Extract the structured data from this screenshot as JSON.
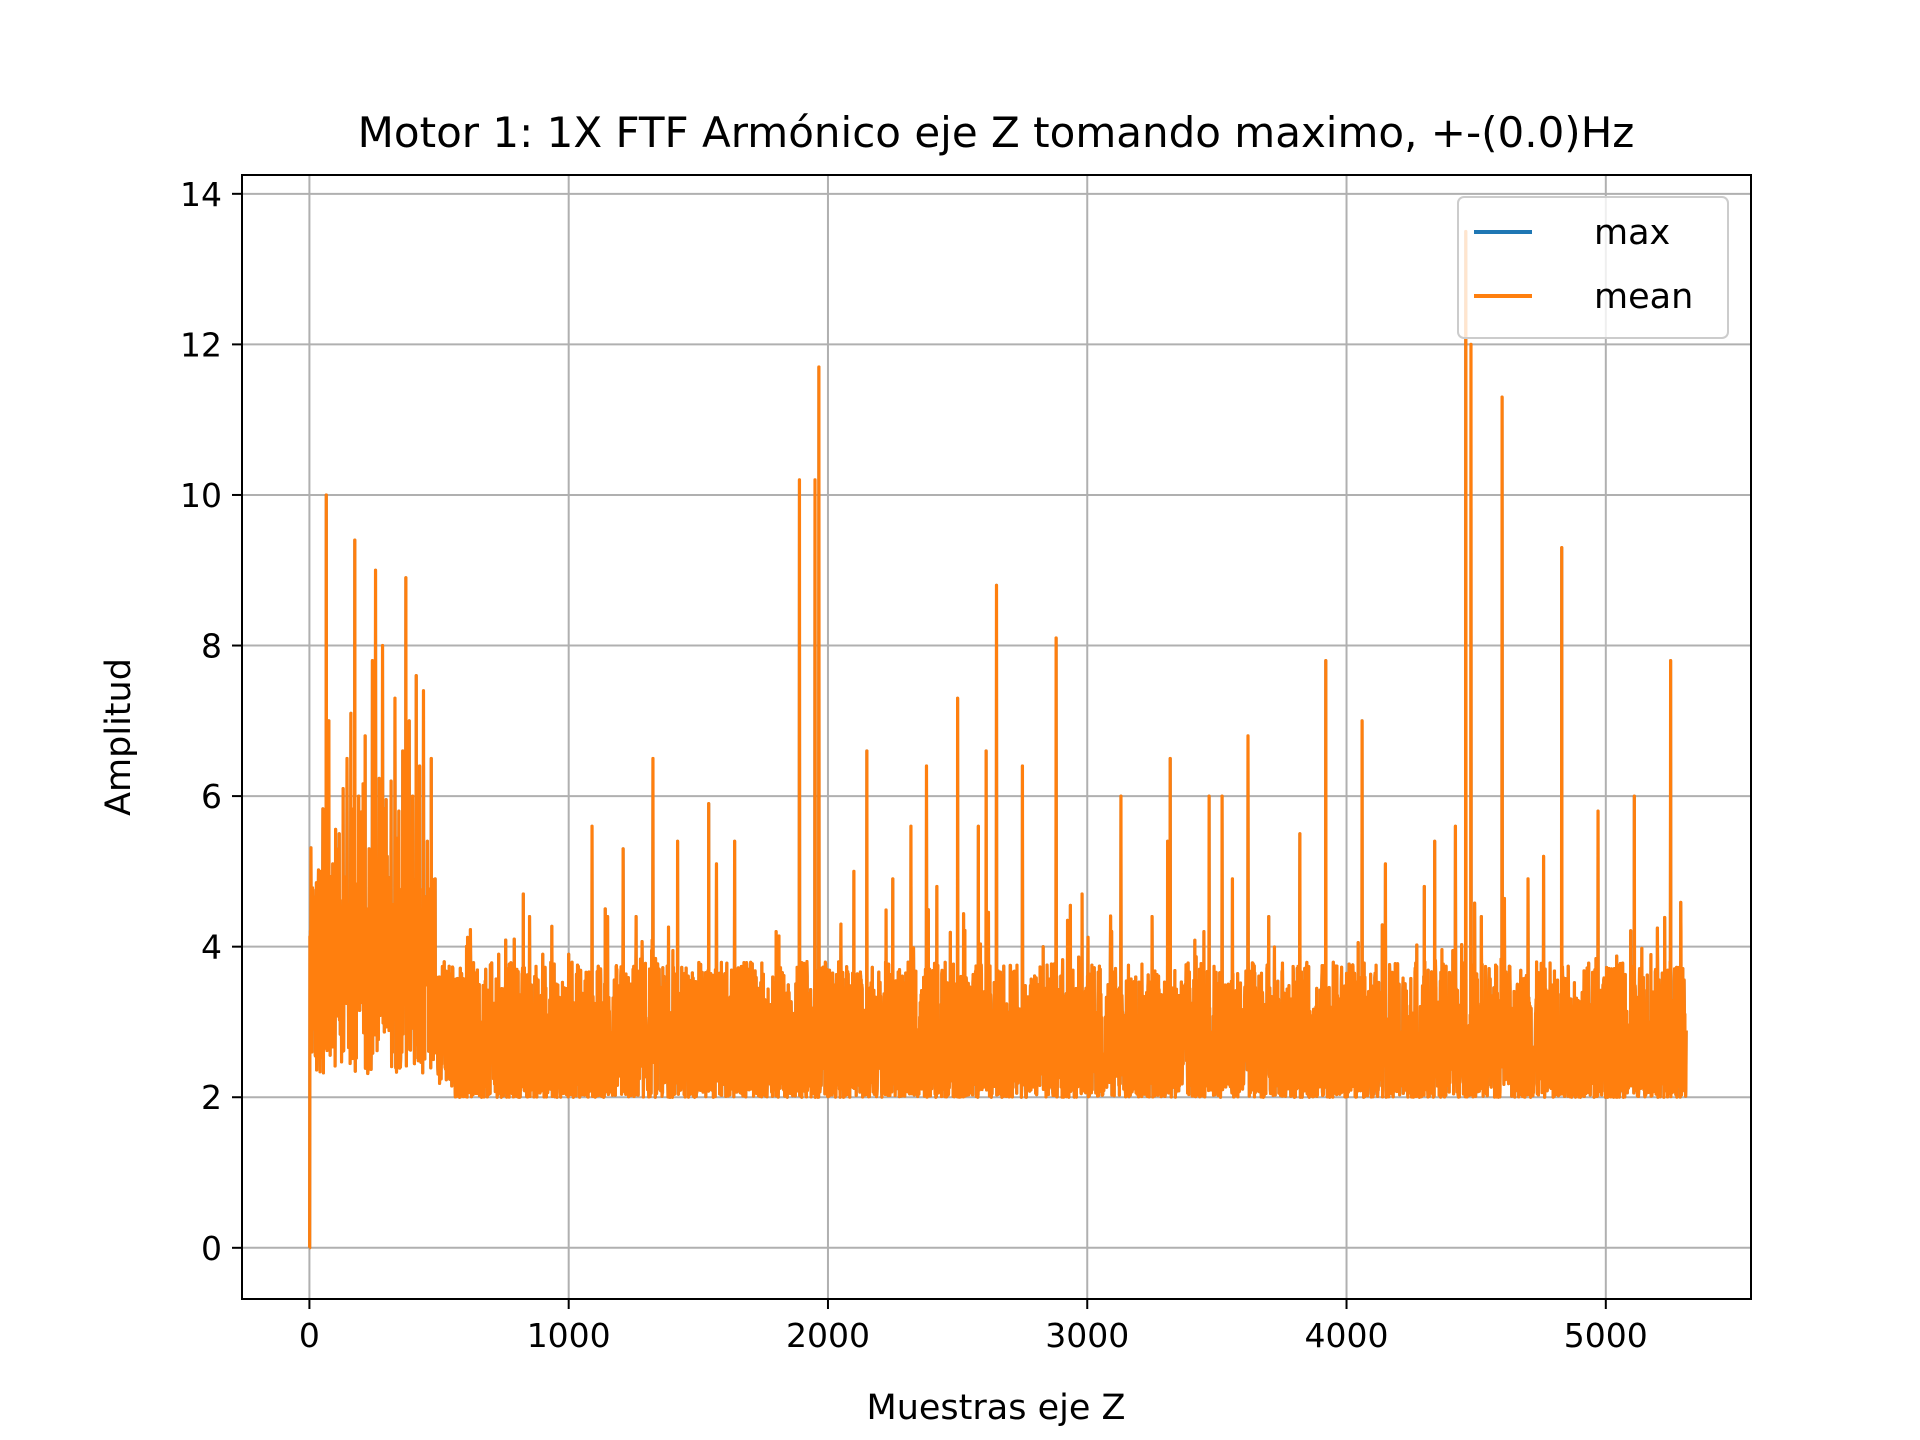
{
  "chart_data": {
    "type": "line",
    "title": "Motor 1: 1X FTF Armónico eje Z tomando maximo, +-(0.0)Hz",
    "xlabel": "Muestras eje Z",
    "ylabel": "Amplitud",
    "xlim": [
      -260,
      5560
    ],
    "ylim": [
      -0.68,
      14.25
    ],
    "xticks": [
      0,
      1000,
      2000,
      3000,
      4000,
      5000
    ],
    "yticks": [
      0,
      2,
      4,
      6,
      8,
      10,
      12,
      14
    ],
    "xtick_labels": [
      "0",
      "1000",
      "2000",
      "3000",
      "4000",
      "5000"
    ],
    "ytick_labels": [
      "0",
      "2",
      "4",
      "6",
      "8",
      "10",
      "12",
      "14"
    ],
    "grid": true,
    "legend_position": "top-right",
    "x_range": [
      0,
      5310
    ],
    "baseline_range": [
      2.0,
      3.3
    ],
    "initial_value": 0.0,
    "peaks": [
      [
        5,
        3.6
      ],
      [
        15,
        4.4
      ],
      [
        30,
        4.3
      ],
      [
        45,
        5.0
      ],
      [
        58,
        3.8
      ],
      [
        65,
        10.0
      ],
      [
        75,
        7.0
      ],
      [
        90,
        5.1
      ],
      [
        105,
        4.2
      ],
      [
        115,
        5.5
      ],
      [
        130,
        6.1
      ],
      [
        145,
        6.5
      ],
      [
        160,
        7.1
      ],
      [
        175,
        9.4
      ],
      [
        190,
        6.0
      ],
      [
        200,
        5.5
      ],
      [
        215,
        6.8
      ],
      [
        230,
        5.3
      ],
      [
        243,
        7.8
      ],
      [
        255,
        9.0
      ],
      [
        270,
        4.6
      ],
      [
        282,
        8.0
      ],
      [
        300,
        5.2
      ],
      [
        315,
        6.2
      ],
      [
        330,
        7.3
      ],
      [
        345,
        5.8
      ],
      [
        360,
        6.6
      ],
      [
        372,
        8.9
      ],
      [
        385,
        7.0
      ],
      [
        398,
        6.0
      ],
      [
        412,
        7.6
      ],
      [
        425,
        6.4
      ],
      [
        440,
        7.4
      ],
      [
        455,
        5.4
      ],
      [
        470,
        6.5
      ],
      [
        485,
        4.9
      ],
      [
        520,
        3.8
      ],
      [
        600,
        3.5
      ],
      [
        680,
        3.7
      ],
      [
        730,
        3.9
      ],
      [
        790,
        4.1
      ],
      [
        825,
        4.7
      ],
      [
        900,
        3.9
      ],
      [
        1000,
        3.9
      ],
      [
        1090,
        5.6
      ],
      [
        1150,
        4.4
      ],
      [
        1210,
        5.3
      ],
      [
        1260,
        4.4
      ],
      [
        1325,
        6.5
      ],
      [
        1420,
        5.4
      ],
      [
        1540,
        5.9
      ],
      [
        1570,
        5.1
      ],
      [
        1640,
        5.4
      ],
      [
        1720,
        2.9
      ],
      [
        1800,
        4.2
      ],
      [
        1890,
        10.2
      ],
      [
        1950,
        10.2
      ],
      [
        1965,
        11.7
      ],
      [
        2050,
        4.3
      ],
      [
        2100,
        5.0
      ],
      [
        2150,
        6.6
      ],
      [
        2250,
        4.9
      ],
      [
        2320,
        5.6
      ],
      [
        2380,
        6.4
      ],
      [
        2420,
        4.8
      ],
      [
        2500,
        7.3
      ],
      [
        2580,
        5.6
      ],
      [
        2610,
        6.6
      ],
      [
        2650,
        8.8
      ],
      [
        2750,
        6.4
      ],
      [
        2830,
        4.0
      ],
      [
        2880,
        8.1
      ],
      [
        2980,
        4.7
      ],
      [
        3050,
        3.7
      ],
      [
        3130,
        6.0
      ],
      [
        3250,
        4.4
      ],
      [
        3310,
        5.4
      ],
      [
        3320,
        6.5
      ],
      [
        3450,
        4.2
      ],
      [
        3470,
        6.0
      ],
      [
        3520,
        6.0
      ],
      [
        3560,
        4.9
      ],
      [
        3620,
        6.8
      ],
      [
        3700,
        4.4
      ],
      [
        3820,
        5.5
      ],
      [
        3920,
        7.8
      ],
      [
        4060,
        7.0
      ],
      [
        4150,
        5.1
      ],
      [
        4300,
        4.8
      ],
      [
        4340,
        5.4
      ],
      [
        4420,
        5.6
      ],
      [
        4460,
        13.5
      ],
      [
        4480,
        12.0
      ],
      [
        4520,
        4.4
      ],
      [
        4600,
        11.3
      ],
      [
        4700,
        4.9
      ],
      [
        4760,
        5.2
      ],
      [
        4830,
        9.3
      ],
      [
        4970,
        5.8
      ],
      [
        5050,
        3.6
      ],
      [
        5110,
        6.0
      ],
      [
        5180,
        3.4
      ],
      [
        5250,
        7.8
      ],
      [
        5290,
        4.2
      ],
      [
        5305,
        3.1
      ]
    ],
    "series": [
      {
        "name": "max",
        "color": "#1f77b4"
      },
      {
        "name": "mean",
        "color": "#ff7f0e"
      }
    ]
  }
}
